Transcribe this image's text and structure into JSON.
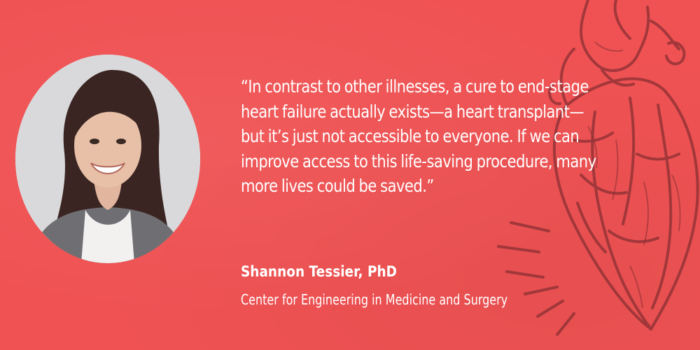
{
  "colors": {
    "background": "#f05253",
    "text": "#ffffff",
    "illustration": "#8a2f33"
  },
  "quote": {
    "text": "“In contrast to other illnesses, a cure to end-stage heart failure actually exists—a heart transplant—but it’s just not accessible to everyone. If we can improve access to this life-saving procedure, many more lives could be saved.”"
  },
  "author": {
    "name": "Shannon Tessier, PhD",
    "affiliation": "Center for Engineering in Medicine and Surgery"
  },
  "images": {
    "portrait": "portrait-photo",
    "illustration": "anatomical-heart-illustration"
  }
}
